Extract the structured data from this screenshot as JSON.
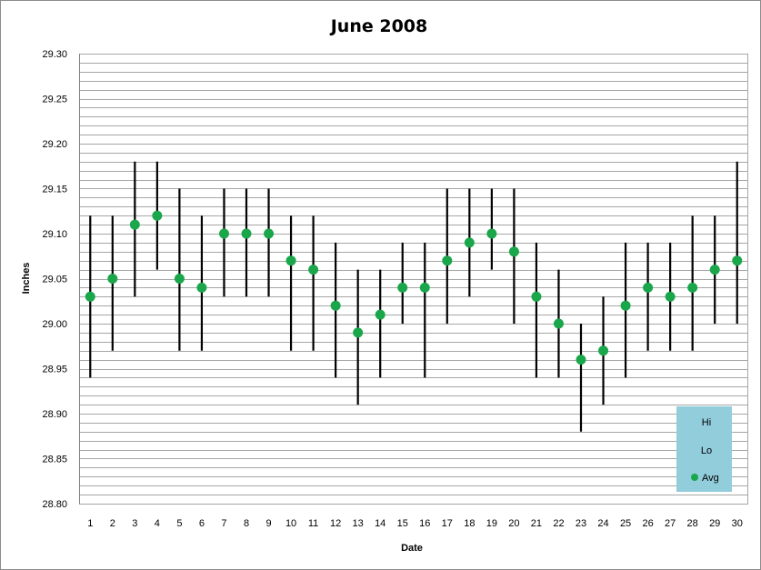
{
  "chart_data": {
    "type": "hi-lo-avg",
    "title": "June 2008",
    "xlabel": "Date",
    "ylabel": "Inches",
    "ylim": [
      28.8,
      29.3
    ],
    "y_ticks": [
      "29.30",
      "29.25",
      "29.20",
      "29.15",
      "29.10",
      "29.05",
      "29.00",
      "28.95",
      "28.90",
      "28.85",
      "28.80"
    ],
    "minor_grid_step": 0.01,
    "grid": true,
    "legend_position": "bottom-right",
    "legend": [
      {
        "name": "Hi"
      },
      {
        "name": "Lo"
      },
      {
        "name": "Avg"
      }
    ],
    "categories": [
      "1",
      "2",
      "3",
      "4",
      "5",
      "6",
      "7",
      "8",
      "9",
      "10",
      "11",
      "12",
      "13",
      "14",
      "15",
      "16",
      "17",
      "18",
      "19",
      "20",
      "21",
      "22",
      "23",
      "24",
      "25",
      "26",
      "27",
      "28",
      "29",
      "30"
    ],
    "series": [
      {
        "name": "Hi",
        "values": [
          29.12,
          29.12,
          29.18,
          29.18,
          29.15,
          29.12,
          29.15,
          29.15,
          29.15,
          29.12,
          29.12,
          29.09,
          29.06,
          29.06,
          29.09,
          29.09,
          29.15,
          29.15,
          29.15,
          29.15,
          29.09,
          29.06,
          29.0,
          29.03,
          29.09,
          29.09,
          29.09,
          29.12,
          29.12,
          29.18
        ]
      },
      {
        "name": "Lo",
        "values": [
          28.94,
          28.97,
          29.03,
          29.06,
          28.97,
          28.97,
          29.03,
          29.03,
          29.03,
          28.97,
          28.97,
          28.94,
          28.91,
          28.94,
          29.0,
          28.94,
          29.0,
          29.03,
          29.06,
          29.0,
          28.94,
          28.94,
          28.88,
          28.91,
          28.94,
          28.97,
          28.97,
          28.97,
          29.0,
          29.0
        ]
      },
      {
        "name": "Avg",
        "values": [
          29.03,
          29.05,
          29.11,
          29.12,
          29.05,
          29.04,
          29.1,
          29.1,
          29.1,
          29.07,
          29.06,
          29.02,
          28.99,
          29.01,
          29.04,
          29.04,
          29.07,
          29.09,
          29.1,
          29.08,
          29.03,
          29.0,
          28.96,
          28.97,
          29.02,
          29.04,
          29.03,
          29.04,
          29.06,
          29.07
        ]
      }
    ],
    "colors": {
      "avg_marker": "#1aa64a",
      "hi_lo_line": "#000000",
      "legend_bg": "#92cddc",
      "grid": "#a6a6a6"
    }
  }
}
